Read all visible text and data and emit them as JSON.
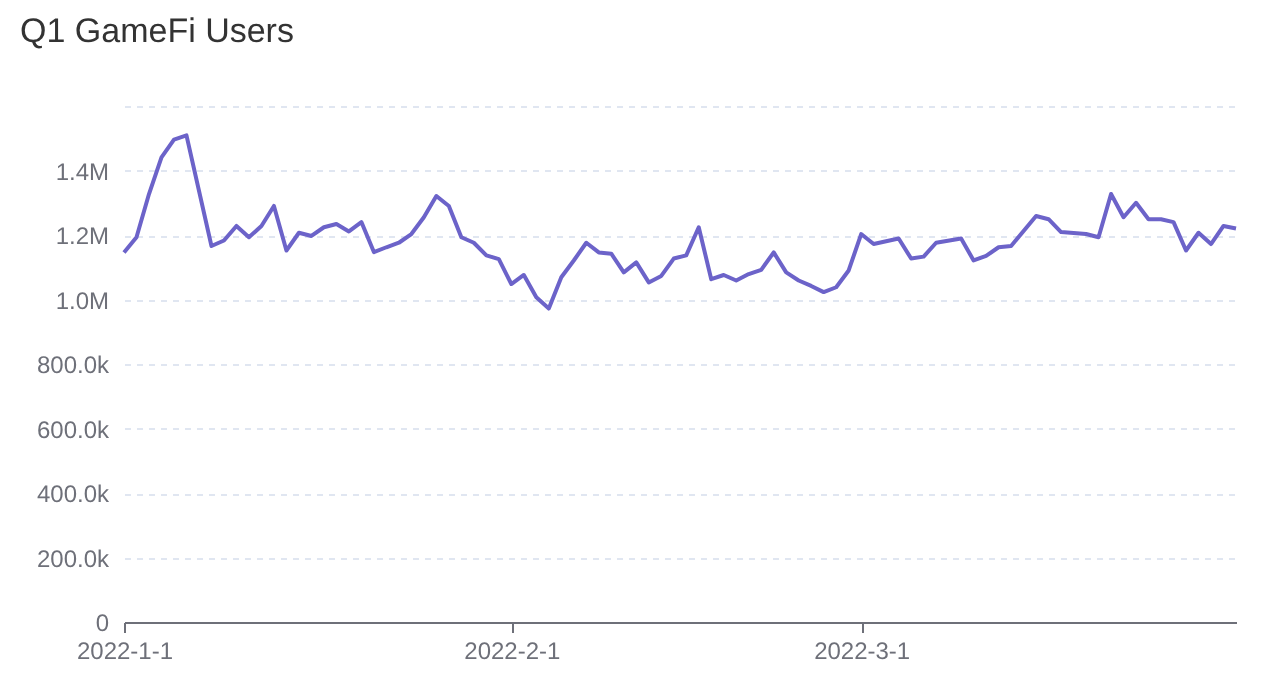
{
  "chart_data": {
    "type": "line",
    "title": "Q1 GameFi Users",
    "x": [
      "2022-01-01",
      "2022-01-02",
      "2022-01-03",
      "2022-01-04",
      "2022-01-05",
      "2022-01-06",
      "2022-01-08",
      "2022-01-09",
      "2022-01-10",
      "2022-01-11",
      "2022-01-12",
      "2022-01-13",
      "2022-01-14",
      "2022-01-15",
      "2022-01-16",
      "2022-01-17",
      "2022-01-18",
      "2022-01-19",
      "2022-01-20",
      "2022-01-21",
      "2022-01-22",
      "2022-01-23",
      "2022-01-24",
      "2022-01-25",
      "2022-01-26",
      "2022-01-27",
      "2022-01-28",
      "2022-01-29",
      "2022-01-30",
      "2022-01-31",
      "2022-02-01",
      "2022-02-02",
      "2022-02-03",
      "2022-02-04",
      "2022-02-05",
      "2022-02-06",
      "2022-02-07",
      "2022-02-08",
      "2022-02-09",
      "2022-02-10",
      "2022-02-11",
      "2022-02-12",
      "2022-02-13",
      "2022-02-14",
      "2022-02-15",
      "2022-02-16",
      "2022-02-17",
      "2022-02-18",
      "2022-02-19",
      "2022-02-20",
      "2022-02-21",
      "2022-02-22",
      "2022-02-23",
      "2022-02-24",
      "2022-02-25",
      "2022-02-26",
      "2022-02-27",
      "2022-02-28",
      "2022-03-01",
      "2022-03-02",
      "2022-03-04",
      "2022-03-05",
      "2022-03-06",
      "2022-03-07",
      "2022-03-09",
      "2022-03-10",
      "2022-03-11",
      "2022-03-12",
      "2022-03-13",
      "2022-03-15",
      "2022-03-16",
      "2022-03-17",
      "2022-03-19",
      "2022-03-20",
      "2022-03-21",
      "2022-03-22",
      "2022-03-23",
      "2022-03-24",
      "2022-03-25",
      "2022-03-26",
      "2022-03-27",
      "2022-03-28",
      "2022-03-29",
      "2022-03-30",
      "2022-03-31"
    ],
    "series": [
      {
        "color": "#6c63c9",
        "values": [
          1146000,
          1193000,
          1327000,
          1441000,
          1496000,
          1509000,
          1166000,
          1183000,
          1228000,
          1193000,
          1228000,
          1290000,
          1152000,
          1207000,
          1197000,
          1224000,
          1234000,
          1211000,
          1240000,
          1147000,
          1162000,
          1176000,
          1203000,
          1255000,
          1321000,
          1290000,
          1193000,
          1176000,
          1137000,
          1125000,
          1048000,
          1076000,
          1007000,
          972000,
          1069000,
          1121000,
          1176000,
          1146000,
          1142000,
          1084000,
          1115000,
          1053000,
          1073000,
          1127000,
          1137000,
          1224000,
          1063000,
          1076000,
          1059000,
          1079000,
          1092000,
          1146000,
          1084000,
          1059000,
          1042000,
          1023000,
          1038000,
          1090000,
          1203000,
          1172000,
          1189000,
          1127000,
          1133000,
          1176000,
          1189000,
          1121000,
          1135000,
          1162000,
          1166000,
          1259000,
          1249000,
          1209000,
          1203000,
          1193000,
          1327000,
          1255000,
          1300000,
          1249000,
          1249000,
          1240000,
          1152000,
          1207000,
          1172000,
          1228000,
          1220000
        ]
      }
    ],
    "xlim": [
      "2022-01-01",
      "2022-03-31"
    ],
    "xticks": [
      {
        "value": "2022-01-01",
        "label": "2022-1-1"
      },
      {
        "value": "2022-02-01",
        "label": "2022-2-1"
      },
      {
        "value": "2022-03-01",
        "label": "2022-3-1"
      }
    ],
    "ylim": [
      0,
      1600000
    ],
    "yticks": [
      0,
      {
        "value": 200000,
        "label": "200.0k"
      },
      {
        "value": 400000,
        "label": "400.0k"
      },
      {
        "value": 600000,
        "label": "600.0k"
      },
      {
        "value": 800000,
        "label": "800.0k"
      },
      {
        "value": 1000000,
        "label": "1.0M"
      },
      {
        "value": 1200000,
        "label": "1.2M"
      },
      {
        "value": 1400000,
        "label": "1.4M"
      },
      {
        "value": 1600000,
        "label": null
      }
    ],
    "grid": "y",
    "marker": "none",
    "line_style": "solid"
  }
}
